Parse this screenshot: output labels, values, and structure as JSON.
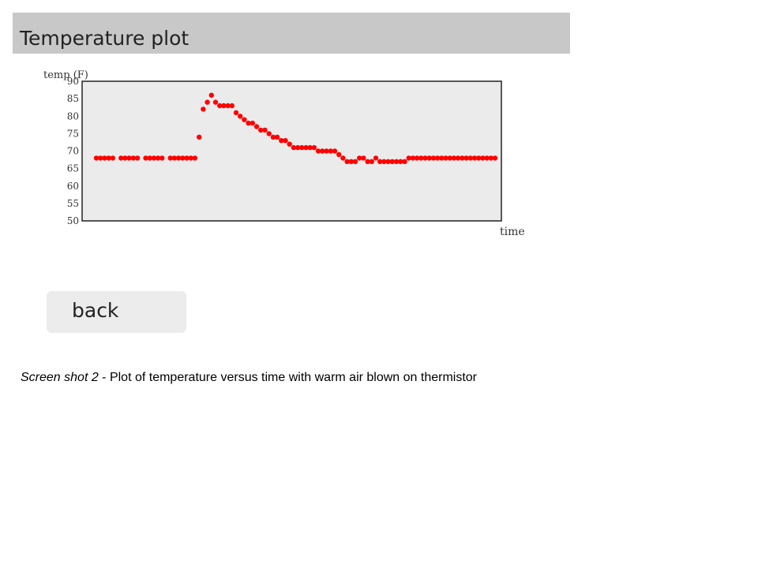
{
  "header": {
    "title": "Temperature plot"
  },
  "chart_data": {
    "type": "scatter",
    "ylabel": "temp (F)",
    "xlabel": "time",
    "ylim": [
      50,
      90
    ],
    "yticks": [
      90,
      85,
      80,
      75,
      70,
      65,
      60,
      55,
      50
    ],
    "marker_color": "#ff0000",
    "plot_background": "#ebebeb",
    "x": [
      1,
      2,
      3,
      4,
      5,
      7,
      8,
      9,
      10,
      11,
      13,
      14,
      15,
      16,
      17,
      19,
      20,
      21,
      22,
      23,
      24,
      25,
      26,
      27,
      28,
      29,
      30,
      31,
      32,
      33,
      34,
      35,
      36,
      37,
      38,
      39,
      40,
      41,
      42,
      43,
      44,
      45,
      46,
      47,
      48,
      49,
      50,
      51,
      52,
      53,
      54,
      55,
      56,
      57,
      58,
      59,
      60,
      61,
      62,
      63,
      64,
      65,
      66,
      67,
      68,
      69,
      70,
      71,
      72,
      73,
      74,
      75,
      76,
      77,
      78,
      79,
      80,
      81,
      82,
      83,
      84,
      85,
      86,
      87,
      88,
      89,
      90,
      91,
      92,
      93,
      94,
      95,
      96,
      97,
      98
    ],
    "values": [
      68,
      68,
      68,
      68,
      68,
      68,
      68,
      68,
      68,
      68,
      68,
      68,
      68,
      68,
      68,
      68,
      68,
      68,
      68,
      68,
      68,
      68,
      74,
      82,
      84,
      86,
      84,
      83,
      83,
      83,
      83,
      81,
      80,
      79,
      78,
      78,
      77,
      76,
      76,
      75,
      74,
      74,
      73,
      73,
      72,
      71,
      71,
      71,
      71,
      71,
      71,
      70,
      70,
      70,
      70,
      70,
      69,
      68,
      67,
      67,
      67,
      68,
      68,
      67,
      67,
      68,
      67,
      67,
      67,
      67,
      67,
      67,
      67,
      68,
      68,
      68,
      68,
      68,
      68,
      68,
      68,
      68,
      68,
      68,
      68,
      68,
      68,
      68,
      68,
      68,
      68,
      68,
      68,
      68,
      68
    ]
  },
  "back_button": {
    "label": "back"
  },
  "caption": {
    "italic_part": "Screen shot 2",
    "rest": " - Plot of temperature versus time with warm air blown on thermistor"
  }
}
